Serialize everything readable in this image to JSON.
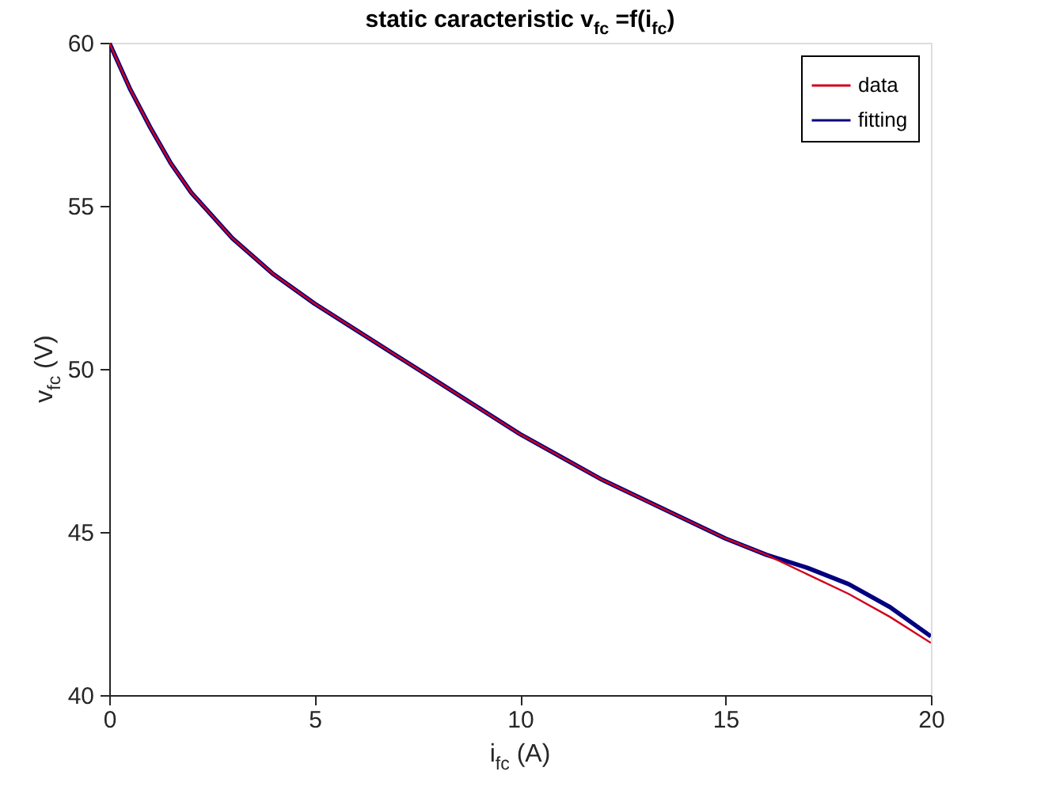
{
  "chart_data": {
    "type": "line",
    "title": "static caracteristic v$_{fc}$ =f(i$_{fc}$)",
    "xlabel": "i$_{fc}$ (A)",
    "ylabel": "v$_{fc}$ (V)",
    "x": [
      0,
      0.5,
      1,
      1.5,
      2,
      3,
      4,
      5,
      6,
      7,
      8,
      9,
      10,
      11,
      12,
      13,
      14,
      15,
      16,
      17,
      18,
      19,
      20
    ],
    "series": [
      {
        "name": "data",
        "color": "#d0021b",
        "values": [
          60,
          58.6,
          57.4,
          56.3,
          55.4,
          54.0,
          52.9,
          52.0,
          51.2,
          50.4,
          49.6,
          48.8,
          48.0,
          47.3,
          46.6,
          46.0,
          45.4,
          44.8,
          44.3,
          43.7,
          43.1,
          42.4,
          41.6
        ]
      },
      {
        "name": "fitting",
        "color": "#000080",
        "values": [
          60,
          58.6,
          57.4,
          56.3,
          55.4,
          54.0,
          52.9,
          52.0,
          51.2,
          50.4,
          49.6,
          48.8,
          48.0,
          47.3,
          46.6,
          46.0,
          45.4,
          44.8,
          44.3,
          43.9,
          43.4,
          42.7,
          41.8
        ]
      }
    ],
    "xlim": [
      0,
      20
    ],
    "xticks": [
      0,
      5,
      10,
      15,
      20
    ],
    "ylim": [
      40,
      60
    ],
    "yticks": [
      40,
      45,
      50,
      55,
      60
    ],
    "grid": false,
    "legend": "top right",
    "marker": "none",
    "line_style": "solid"
  }
}
